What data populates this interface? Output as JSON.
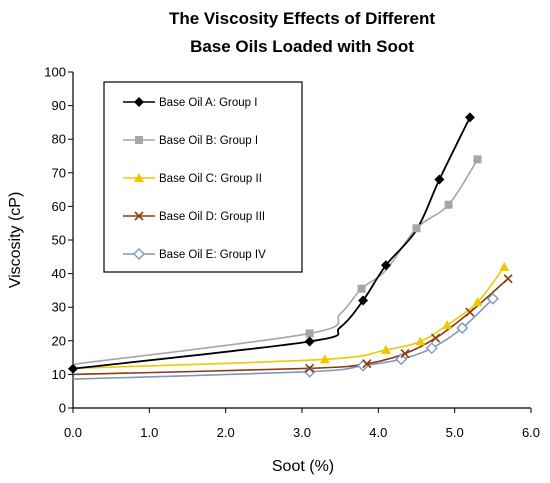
{
  "chart_data": {
    "type": "line",
    "title": [
      "The Viscosity Effects of Different",
      "Base Oils Loaded with Soot"
    ],
    "xlabel": "Soot (%)",
    "ylabel": "Viscosity (cP)",
    "xlim": [
      0,
      6
    ],
    "ylim": [
      0,
      100
    ],
    "xticks": [
      "0.0",
      "1.0",
      "2.0",
      "3.0",
      "4.0",
      "5.0",
      "6.0"
    ],
    "yticks": [
      "0",
      "10",
      "20",
      "30",
      "40",
      "50",
      "60",
      "70",
      "80",
      "90",
      "100"
    ],
    "grid": false,
    "legend_position": "top-left",
    "series": [
      {
        "name": "Base Oil A: Group I",
        "color": "#000000",
        "marker": "diamond-filled",
        "points": [
          [
            0,
            11.7
          ],
          [
            3.1,
            19.8
          ],
          [
            3.8,
            32
          ],
          [
            4.1,
            42.5
          ],
          [
            4.8,
            68
          ],
          [
            5.2,
            86.5
          ]
        ],
        "curve": [
          [
            0,
            11.7
          ],
          [
            3.1,
            19.8
          ],
          [
            3.5,
            24
          ],
          [
            3.8,
            32
          ],
          [
            4.1,
            42.5
          ],
          [
            4.5,
            53
          ],
          [
            4.8,
            68
          ],
          [
            5.2,
            86.5
          ]
        ]
      },
      {
        "name": "Base Oil B: Group I",
        "color": "#a6a6a6",
        "marker": "square",
        "points": [
          [
            3.1,
            22.2
          ],
          [
            3.78,
            35.5
          ],
          [
            4.5,
            53.5
          ],
          [
            4.92,
            60.5
          ],
          [
            5.3,
            74
          ]
        ],
        "curve": [
          [
            0,
            13
          ],
          [
            3.1,
            22.2
          ],
          [
            3.5,
            28
          ],
          [
            3.78,
            35.5
          ],
          [
            4.1,
            41
          ],
          [
            4.5,
            53.5
          ],
          [
            4.92,
            60.5
          ],
          [
            5.3,
            74
          ]
        ]
      },
      {
        "name": "Base Oil C: Group II",
        "color": "#f0c800",
        "marker": "triangle",
        "points": [
          [
            3.3,
            14.5
          ],
          [
            4.1,
            17.3
          ],
          [
            4.55,
            19.8
          ],
          [
            4.9,
            24.7
          ],
          [
            5.3,
            31.5
          ],
          [
            5.65,
            42
          ]
        ],
        "curve": [
          [
            0,
            11.8
          ],
          [
            3.3,
            14.5
          ],
          [
            4.1,
            17.3
          ],
          [
            4.55,
            19.8
          ],
          [
            4.9,
            24.7
          ],
          [
            5.3,
            31.5
          ],
          [
            5.65,
            42
          ]
        ]
      },
      {
        "name": "Base Oil D: Group III",
        "color": "#8b3a0e",
        "marker": "x",
        "points": [
          [
            3.1,
            11.8
          ],
          [
            3.85,
            13.2
          ],
          [
            4.35,
            16.2
          ],
          [
            4.75,
            20.8
          ],
          [
            5.2,
            28.5
          ],
          [
            5.7,
            38.5
          ]
        ],
        "curve": [
          [
            0,
            10
          ],
          [
            3.1,
            11.8
          ],
          [
            3.85,
            13.2
          ],
          [
            4.35,
            16.2
          ],
          [
            4.75,
            20.8
          ],
          [
            5.2,
            28.5
          ],
          [
            5.7,
            38.5
          ]
        ]
      },
      {
        "name": "Base Oil E: Group IV",
        "color": "#7f97bf",
        "marker": "diamond-open",
        "points": [
          [
            3.1,
            10.8
          ],
          [
            3.8,
            12.6
          ],
          [
            4.3,
            14.5
          ],
          [
            4.7,
            17.8
          ],
          [
            5.1,
            23.8
          ],
          [
            5.5,
            32.5
          ]
        ],
        "curve": [
          [
            0,
            8.6
          ],
          [
            3.1,
            10.8
          ],
          [
            3.8,
            12.6
          ],
          [
            4.3,
            14.5
          ],
          [
            4.7,
            17.8
          ],
          [
            5.1,
            23.8
          ],
          [
            5.5,
            32.5
          ]
        ]
      }
    ]
  }
}
